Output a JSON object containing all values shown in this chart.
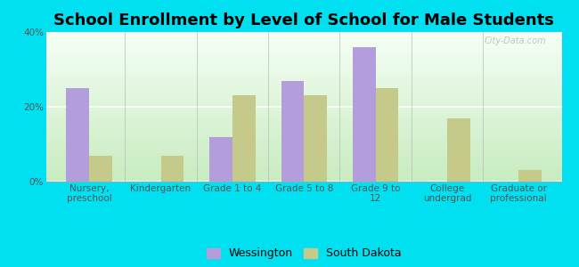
{
  "title": "School Enrollment by Level of School for Male Students",
  "categories": [
    "Nursery,\npreschool",
    "Kindergarten",
    "Grade 1 to 4",
    "Grade 5 to 8",
    "Grade 9 to\n12",
    "College\nundergrad",
    "Graduate or\nprofessional"
  ],
  "wessington": [
    25.0,
    0.0,
    12.0,
    27.0,
    36.0,
    0.0,
    0.0
  ],
  "south_dakota": [
    7.0,
    7.0,
    23.0,
    23.0,
    25.0,
    17.0,
    3.0
  ],
  "wessington_color": "#b39ddb",
  "south_dakota_color": "#c5c98a",
  "bg_outer": "#00e0f0",
  "bg_chart_top": "#f8fff8",
  "bg_chart_bottom": "#d8f0d0",
  "ylim": [
    0,
    40
  ],
  "yticks": [
    0,
    20,
    40
  ],
  "ytick_labels": [
    "0%",
    "20%",
    "40%"
  ],
  "bar_width": 0.32,
  "legend_labels": [
    "Wessington",
    "South Dakota"
  ],
  "title_fontsize": 13,
  "tick_fontsize": 7.5,
  "legend_fontsize": 9
}
